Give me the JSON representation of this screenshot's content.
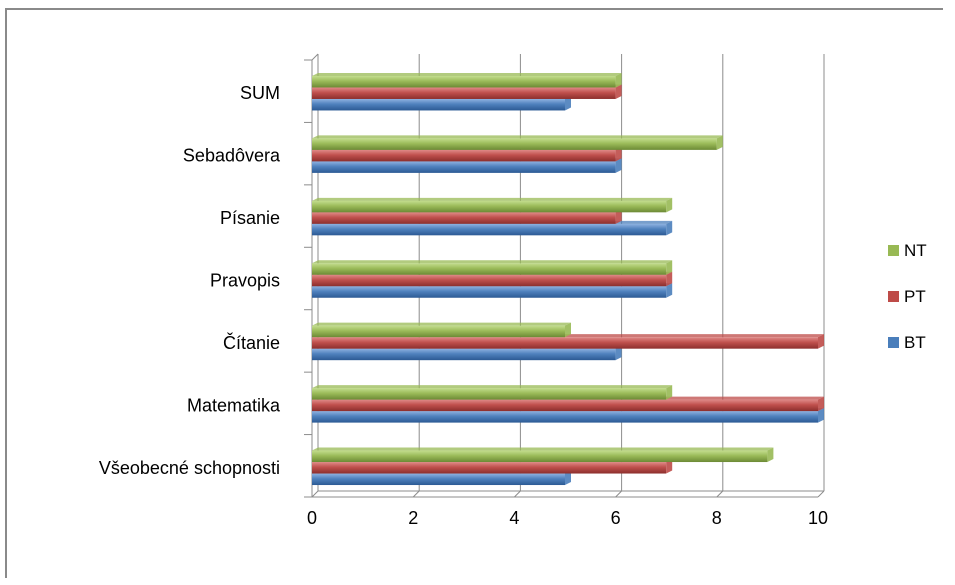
{
  "chart_data": {
    "type": "bar",
    "orientation": "horizontal",
    "categories": [
      "Všeobecné schopnosti",
      "Matematika",
      "Čítanie",
      "Pravopis",
      "Písanie",
      "Sebadôvera",
      "SUM"
    ],
    "series": [
      {
        "name": "BT",
        "color": "#4a7ebb",
        "values": [
          5,
          10,
          6,
          7,
          7,
          6,
          5
        ]
      },
      {
        "name": "PT",
        "color": "#be4b48",
        "values": [
          7,
          10,
          10,
          7,
          6,
          6,
          6
        ]
      },
      {
        "name": "NT",
        "color": "#98b954",
        "values": [
          9,
          7,
          5,
          7,
          7,
          8,
          6
        ]
      }
    ],
    "xlim": [
      0,
      10
    ],
    "xticks": [
      "0",
      "2",
      "4",
      "6",
      "8",
      "10"
    ],
    "grid": "vertical",
    "legend": "right"
  }
}
